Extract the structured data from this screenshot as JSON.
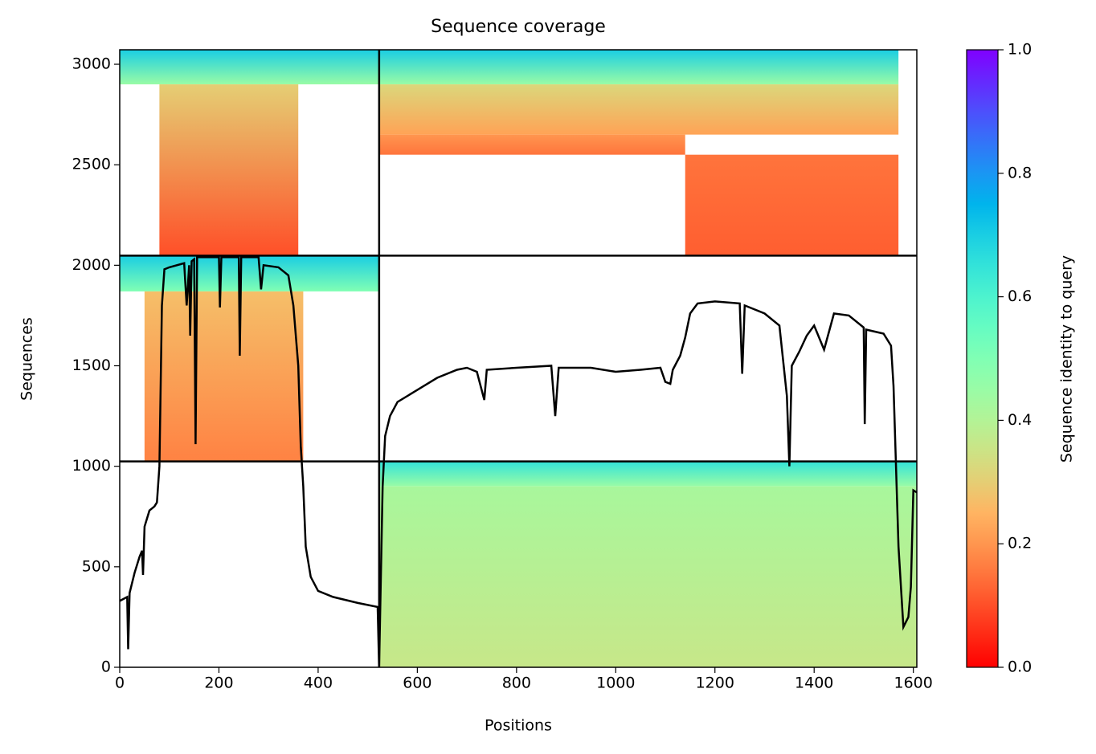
{
  "chart_data": {
    "type": "coverage",
    "title": "Sequence coverage",
    "xlabel": "Positions",
    "ylabel": "Sequences",
    "colorbar_label": "Sequence identity to query",
    "cmap": "rainbow_r",
    "xlim": [
      0,
      1607
    ],
    "ylim": [
      0,
      3072
    ],
    "xticks": [
      0,
      200,
      400,
      600,
      800,
      1000,
      1200,
      1400,
      1600
    ],
    "yticks": [
      0,
      500,
      1000,
      1500,
      2000,
      2500,
      3000
    ],
    "clim": [
      0,
      1
    ],
    "cticks": [
      0.0,
      0.2,
      0.4,
      0.6,
      0.8,
      1.0
    ],
    "dividers": {
      "x": [
        523
      ],
      "y": [
        1024,
        2048
      ]
    },
    "blocks": [
      {
        "x": [
          0,
          523
        ],
        "y": [
          2900,
          3072
        ],
        "identity": [
          0.7,
          0.45
        ]
      },
      {
        "x": [
          80,
          360
        ],
        "y": [
          2048,
          2900
        ],
        "identity": [
          0.3,
          0.1
        ]
      },
      {
        "x": [
          0,
          523
        ],
        "y": [
          1870,
          2048
        ],
        "identity": [
          0.7,
          0.5
        ]
      },
      {
        "x": [
          50,
          370
        ],
        "y": [
          1024,
          1870
        ],
        "identity": [
          0.27,
          0.17
        ]
      },
      {
        "x": [
          523,
          1570
        ],
        "y": [
          2900,
          3072
        ],
        "identity": [
          0.7,
          0.45
        ]
      },
      {
        "x": [
          523,
          1570
        ],
        "y": [
          2650,
          2900
        ],
        "identity": [
          0.32,
          0.22
        ]
      },
      {
        "x": [
          523,
          1140
        ],
        "y": [
          2550,
          2650
        ],
        "identity": [
          0.2,
          0.15
        ]
      },
      {
        "x": [
          1140,
          1570
        ],
        "y": [
          2048,
          2550
        ],
        "identity": [
          0.15,
          0.12
        ]
      },
      {
        "x": [
          523,
          1607
        ],
        "y": [
          900,
          1024
        ],
        "identity": [
          0.65,
          0.45
        ]
      },
      {
        "x": [
          523,
          1607
        ],
        "y": [
          0,
          900
        ],
        "identity": [
          0.42,
          0.36
        ]
      }
    ],
    "coverage": {
      "x": [
        0,
        15,
        17,
        20,
        30,
        40,
        45,
        47,
        50,
        60,
        70,
        75,
        80,
        85,
        90,
        100,
        130,
        135,
        140,
        142,
        145,
        150,
        153,
        156,
        170,
        200,
        202,
        205,
        240,
        242,
        245,
        280,
        285,
        290,
        320,
        340,
        350,
        360,
        365,
        370,
        375,
        385,
        400,
        430,
        480,
        520,
        523,
        530,
        535,
        545,
        560,
        600,
        640,
        680,
        700,
        720,
        735,
        740,
        800,
        870,
        878,
        885,
        950,
        1000,
        1050,
        1090,
        1100,
        1110,
        1115,
        1130,
        1140,
        1150,
        1165,
        1200,
        1250,
        1255,
        1260,
        1300,
        1330,
        1345,
        1350,
        1355,
        1370,
        1385,
        1400,
        1420,
        1440,
        1470,
        1500,
        1502,
        1505,
        1540,
        1555,
        1560,
        1565,
        1570,
        1580,
        1590,
        1595,
        1600,
        1607
      ],
      "values": [
        330,
        350,
        90,
        370,
        470,
        550,
        580,
        460,
        700,
        780,
        800,
        820,
        1000,
        1800,
        1980,
        1990,
        2010,
        1800,
        2000,
        1650,
        2020,
        2030,
        1110,
        2040,
        2040,
        2040,
        1790,
        2040,
        2040,
        1550,
        2040,
        2040,
        1880,
        2000,
        1990,
        1950,
        1800,
        1500,
        1100,
        900,
        600,
        450,
        380,
        350,
        320,
        300,
        0,
        900,
        1150,
        1250,
        1320,
        1380,
        1440,
        1480,
        1490,
        1470,
        1330,
        1480,
        1490,
        1500,
        1250,
        1490,
        1490,
        1470,
        1480,
        1490,
        1420,
        1410,
        1480,
        1550,
        1640,
        1760,
        1810,
        1820,
        1810,
        1460,
        1800,
        1760,
        1700,
        1350,
        1000,
        1500,
        1570,
        1650,
        1700,
        1580,
        1760,
        1750,
        1690,
        1210,
        1680,
        1660,
        1600,
        1400,
        1000,
        600,
        200,
        250,
        400,
        880,
        870
      ],
      "color": "#000000"
    }
  }
}
